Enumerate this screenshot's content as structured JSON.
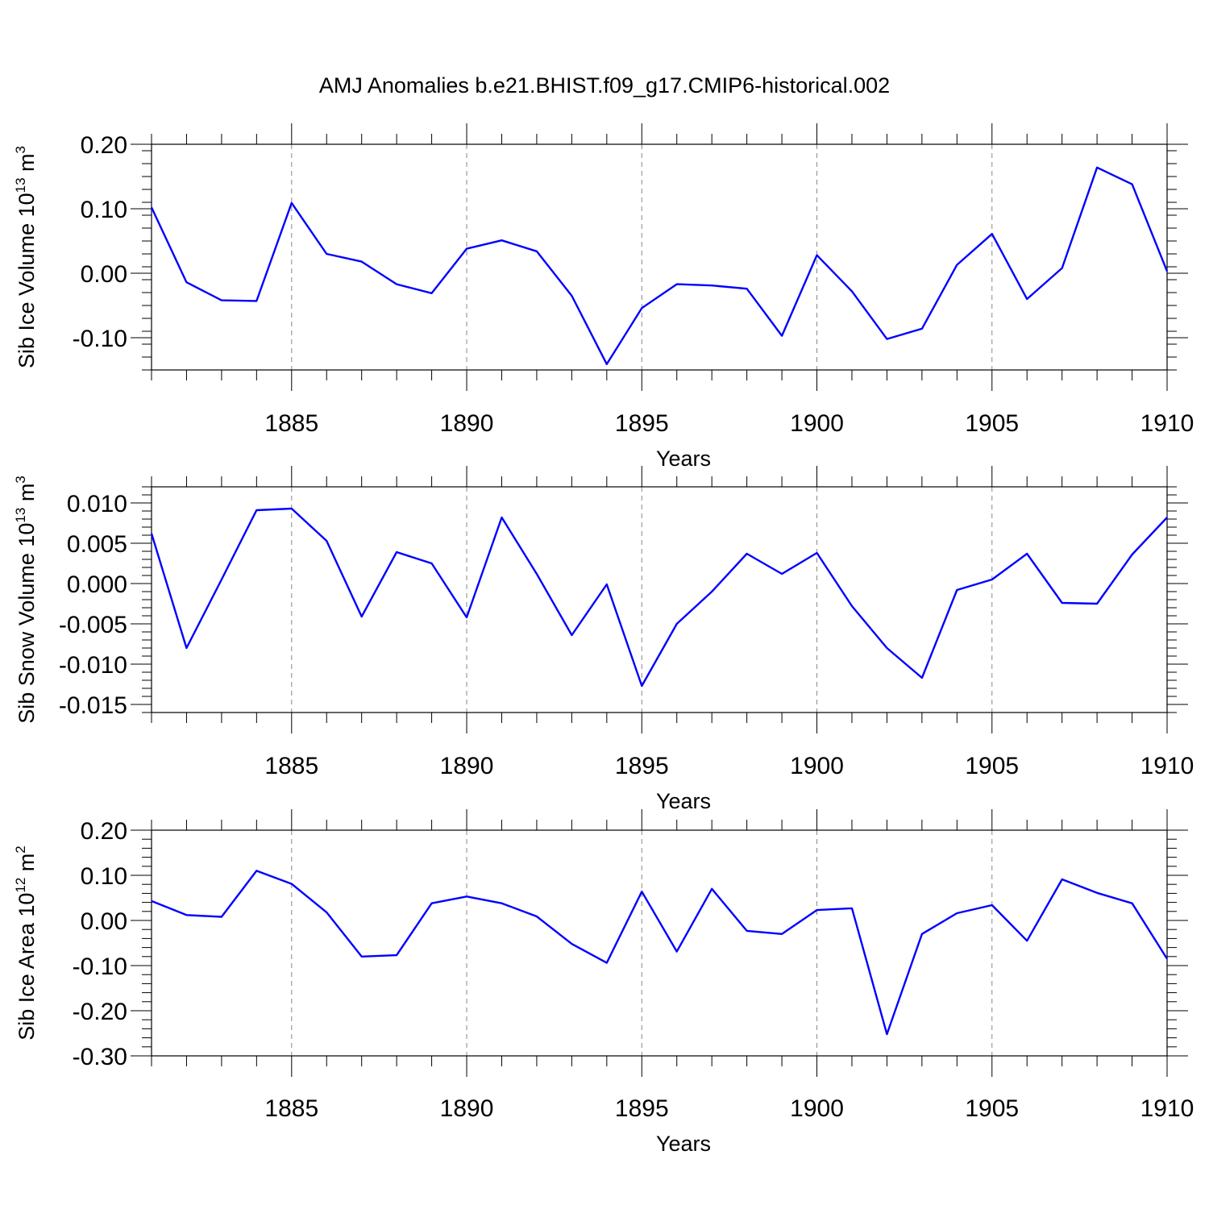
{
  "title": "AMJ Anomalies b.e21.BHIST.f09_g17.CMIP6-historical.002",
  "colors": {
    "line": "#0000ff",
    "axis": "#000000",
    "grid": "#888888"
  },
  "chart_data": [
    {
      "type": "line",
      "xlabel": "Years",
      "ylabel": {
        "text": "Sib Ice Volume 10",
        "exponent": "13",
        "unit": " m",
        "unit_exp": "3"
      },
      "xlim": [
        1881,
        1910
      ],
      "ylim": [
        -0.15,
        0.2
      ],
      "xticks": [
        1885,
        1890,
        1895,
        1900,
        1905,
        1910
      ],
      "yticks": [
        0.2,
        0.1,
        0.0,
        -0.1
      ],
      "ytick_labels": [
        "0.20",
        "0.10",
        "0.00",
        "-0.10"
      ],
      "grid": "vertical dashed at 1885, 1890, 1895, 1900, 1905",
      "x": [
        1881,
        1882,
        1883,
        1884,
        1885,
        1886,
        1887,
        1888,
        1889,
        1890,
        1891,
        1892,
        1893,
        1894,
        1895,
        1896,
        1897,
        1898,
        1899,
        1900,
        1901,
        1902,
        1903,
        1904,
        1905,
        1906,
        1907,
        1908,
        1909,
        1910
      ],
      "series": [
        {
          "values": [
            0.102,
            -0.014,
            -0.042,
            -0.043,
            0.109,
            0.03,
            0.018,
            -0.017,
            -0.031,
            0.038,
            0.051,
            0.034,
            -0.035,
            -0.141,
            -0.054,
            -0.017,
            -0.019,
            -0.024,
            -0.097,
            0.028,
            -0.028,
            -0.102,
            -0.086,
            0.013,
            0.061,
            -0.04,
            0.008,
            0.164,
            0.138,
            0.003
          ]
        }
      ]
    },
    {
      "type": "line",
      "xlabel": "Years",
      "ylabel": {
        "text": "Sib Snow Volume 10",
        "exponent": "13",
        "unit": " m",
        "unit_exp": "3"
      },
      "xlim": [
        1881,
        1910
      ],
      "ylim": [
        -0.016,
        0.012
      ],
      "xticks": [
        1885,
        1890,
        1895,
        1900,
        1905,
        1910
      ],
      "yticks": [
        0.01,
        0.005,
        0.0,
        -0.005,
        -0.01,
        -0.015
      ],
      "ytick_labels": [
        "0.010",
        "0.005",
        "0.000",
        "-0.005",
        "-0.010",
        "-0.015"
      ],
      "grid": "vertical dashed at 1885, 1890, 1895, 1900, 1905",
      "x": [
        1881,
        1882,
        1883,
        1884,
        1885,
        1886,
        1887,
        1888,
        1889,
        1890,
        1891,
        1892,
        1893,
        1894,
        1895,
        1896,
        1897,
        1898,
        1899,
        1900,
        1901,
        1902,
        1903,
        1904,
        1905,
        1906,
        1907,
        1908,
        1909,
        1910
      ],
      "series": [
        {
          "values": [
            0.0062,
            -0.008,
            0.0005,
            0.0091,
            0.0093,
            0.0053,
            -0.0041,
            0.0039,
            0.0025,
            -0.0042,
            0.0082,
            0.0012,
            -0.0064,
            -0.0001,
            -0.0127,
            -0.005,
            -0.001,
            0.0037,
            0.0012,
            0.0038,
            -0.0028,
            -0.008,
            -0.0117,
            -0.0008,
            0.0005,
            0.0037,
            -0.0024,
            -0.0025,
            0.0036,
            0.0082
          ]
        }
      ]
    },
    {
      "type": "line",
      "xlabel": "Years",
      "ylabel": {
        "text": "Sib Ice Area 10",
        "exponent": "12",
        "unit": " m",
        "unit_exp": "2"
      },
      "xlim": [
        1881,
        1910
      ],
      "ylim": [
        -0.3,
        0.2
      ],
      "xticks": [
        1885,
        1890,
        1895,
        1900,
        1905,
        1910
      ],
      "yticks": [
        0.2,
        0.1,
        0.0,
        -0.1,
        -0.2,
        -0.3
      ],
      "ytick_labels": [
        "0.20",
        "0.10",
        "0.00",
        "-0.10",
        "-0.20",
        "-0.30"
      ],
      "grid": "vertical dashed at 1885, 1890, 1895, 1900, 1905",
      "x": [
        1881,
        1882,
        1883,
        1884,
        1885,
        1886,
        1887,
        1888,
        1889,
        1890,
        1891,
        1892,
        1893,
        1894,
        1895,
        1896,
        1897,
        1898,
        1899,
        1900,
        1901,
        1902,
        1903,
        1904,
        1905,
        1906,
        1907,
        1908,
        1909,
        1910
      ],
      "series": [
        {
          "values": [
            0.043,
            0.012,
            0.008,
            0.11,
            0.081,
            0.018,
            -0.08,
            -0.077,
            0.038,
            0.053,
            0.038,
            0.009,
            -0.052,
            -0.094,
            0.064,
            -0.069,
            0.07,
            -0.023,
            -0.03,
            0.023,
            0.027,
            -0.252,
            -0.03,
            0.016,
            0.034,
            -0.045,
            0.091,
            0.061,
            0.038,
            -0.085
          ]
        }
      ]
    }
  ]
}
